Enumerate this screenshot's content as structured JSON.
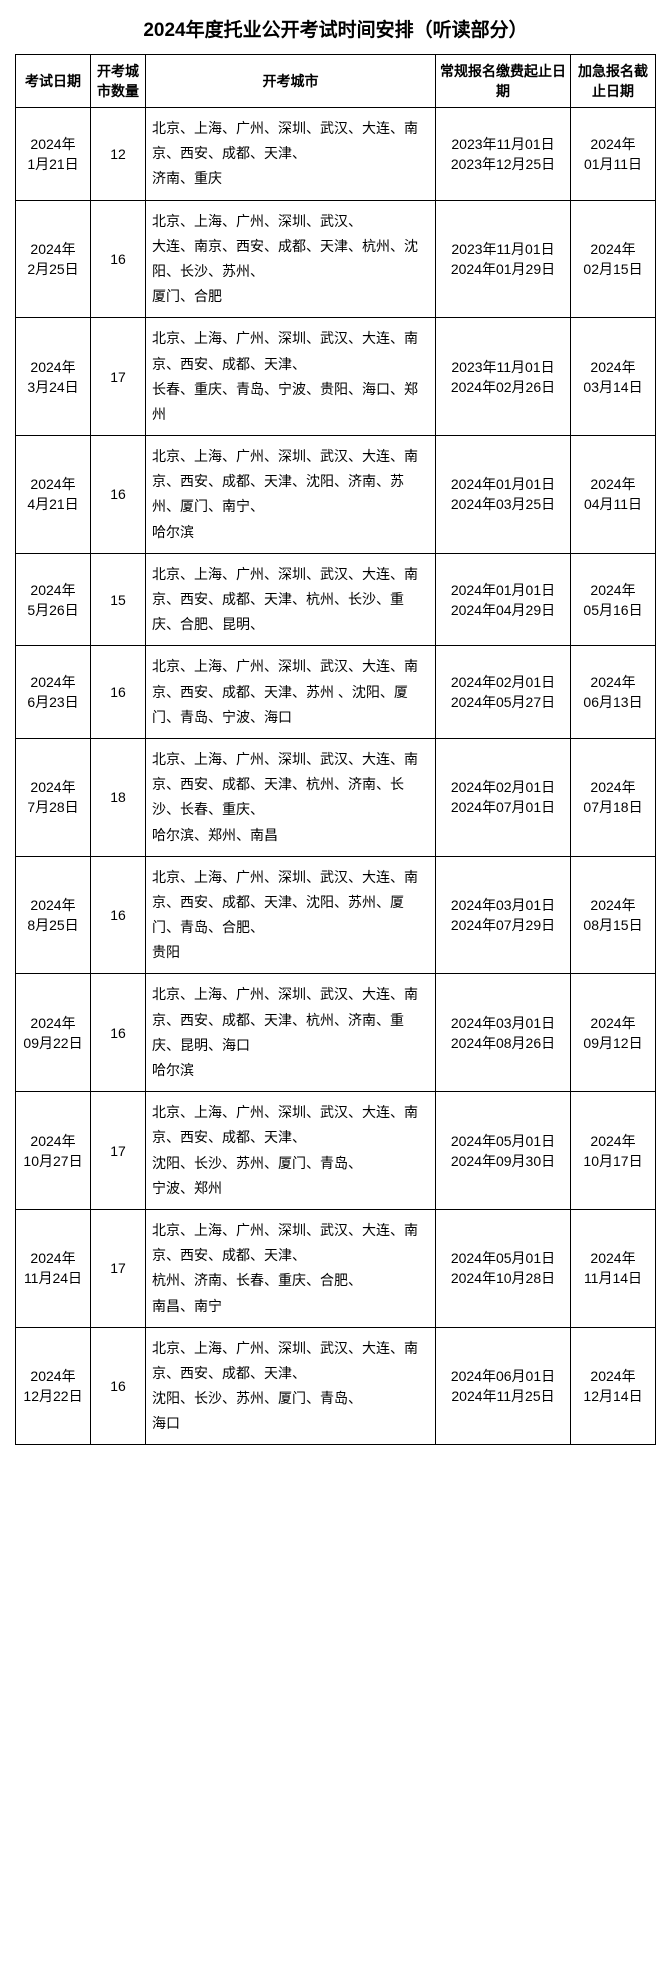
{
  "title": "2024年度托业公开考试时间安排（听读部分）",
  "headers": {
    "exam_date": "考试日期",
    "city_count": "开考城市数量",
    "cities": "开考城市",
    "regular_reg": "常规报名缴费起止日期",
    "rush_reg": "加急报名截止日期"
  },
  "rows": [
    {
      "exam_date_1": "2024年",
      "exam_date_2": "1月21日",
      "city_count": "12",
      "cities": "北京、上海、广州、深圳、武汉、大连、南京、西安、成都、天津、\n济南、重庆",
      "reg_start": "2023年11月01日",
      "reg_end": "2023年12月25日",
      "rush_1": "2024年",
      "rush_2": "01月11日"
    },
    {
      "exam_date_1": "2024年",
      "exam_date_2": "2月25日",
      "city_count": "16",
      "cities": "北京、上海、广州、深圳、武汉、\n大连、南京、西安、成都、天津、杭州、沈阳、长沙、苏州、\n厦门、合肥",
      "reg_start": "2023年11月01日",
      "reg_end": "2024年01月29日",
      "rush_1": "2024年",
      "rush_2": "02月15日"
    },
    {
      "exam_date_1": "2024年",
      "exam_date_2": "3月24日",
      "city_count": "17",
      "cities": "北京、上海、广州、深圳、武汉、大连、南京、西安、成都、天津、\n长春、重庆、青岛、宁波、贵阳、海口、郑州",
      "reg_start": "2023年11月01日",
      "reg_end": "2024年02月26日",
      "rush_1": "2024年",
      "rush_2": "03月14日"
    },
    {
      "exam_date_1": "2024年",
      "exam_date_2": "4月21日",
      "city_count": "16",
      "cities": "北京、上海、广州、深圳、武汉、大连、南京、西安、成都、天津、沈阳、济南、苏州、厦门、南宁、\n哈尔滨",
      "reg_start": "2024年01月01日",
      "reg_end": "2024年03月25日",
      "rush_1": "2024年",
      "rush_2": "04月11日"
    },
    {
      "exam_date_1": "2024年",
      "exam_date_2": "5月26日",
      "city_count": "15",
      "cities": "北京、上海、广州、深圳、武汉、大连、南京、西安、成都、天津、杭州、长沙、重庆、合肥、昆明、",
      "reg_start": "2024年01月01日",
      "reg_end": "2024年04月29日",
      "rush_1": "2024年",
      "rush_2": "05月16日"
    },
    {
      "exam_date_1": "2024年",
      "exam_date_2": "6月23日",
      "city_count": "16",
      "cities": "北京、上海、广州、深圳、武汉、大连、南京、西安、成都、天津、苏州 、沈阳、厦门、青岛、宁波、海口",
      "reg_start": "2024年02月01日",
      "reg_end": "2024年05月27日",
      "rush_1": "2024年",
      "rush_2": "06月13日"
    },
    {
      "exam_date_1": "2024年",
      "exam_date_2": "7月28日",
      "city_count": "18",
      "cities": "北京、上海、广州、深圳、武汉、大连、南京、西安、成都、天津、杭州、济南、长沙、长春、重庆、\n哈尔滨、郑州、南昌",
      "reg_start": "2024年02月01日",
      "reg_end": "2024年07月01日",
      "rush_1": "2024年",
      "rush_2": "07月18日"
    },
    {
      "exam_date_1": "2024年",
      "exam_date_2": "8月25日",
      "city_count": "16",
      "cities": "北京、上海、广州、深圳、武汉、大连、南京、西安、成都、天津、沈阳、苏州、厦门、青岛、合肥、\n贵阳",
      "reg_start": "2024年03月01日",
      "reg_end": "2024年07月29日",
      "rush_1": "2024年",
      "rush_2": "08月15日"
    },
    {
      "exam_date_1": "2024年",
      "exam_date_2": "09月22日",
      "city_count": "16",
      "cities": "北京、上海、广州、深圳、武汉、大连、南京、西安、成都、天津、杭州、济南、重庆、昆明、海口\n哈尔滨",
      "reg_start": "2024年03月01日",
      "reg_end": "2024年08月26日",
      "rush_1": "2024年",
      "rush_2": "09月12日"
    },
    {
      "exam_date_1": "2024年",
      "exam_date_2": "10月27日",
      "city_count": "17",
      "cities": "北京、上海、广州、深圳、武汉、大连、南京、西安、成都、天津、\n沈阳、长沙、苏州、厦门、青岛、\n宁波、郑州",
      "reg_start": "2024年05月01日",
      "reg_end": "2024年09月30日",
      "rush_1": "2024年",
      "rush_2": "10月17日"
    },
    {
      "exam_date_1": "2024年",
      "exam_date_2": "11月24日",
      "city_count": "17",
      "cities": "北京、上海、广州、深圳、武汉、大连、南京、西安、成都、天津、\n杭州、济南、长春、重庆、合肥、\n南昌、南宁",
      "reg_start": "2024年05月01日",
      "reg_end": "2024年10月28日",
      "rush_1": "2024年",
      "rush_2": "11月14日"
    },
    {
      "exam_date_1": "2024年",
      "exam_date_2": "12月22日",
      "city_count": "16",
      "cities": "北京、上海、广州、深圳、武汉、大连、南京、西安、成都、天津、\n沈阳、长沙、苏州、厦门、青岛、\n海口",
      "reg_start": "2024年06月01日",
      "reg_end": "2024年11月25日",
      "rush_1": "2024年",
      "rush_2": "12月14日"
    }
  ]
}
